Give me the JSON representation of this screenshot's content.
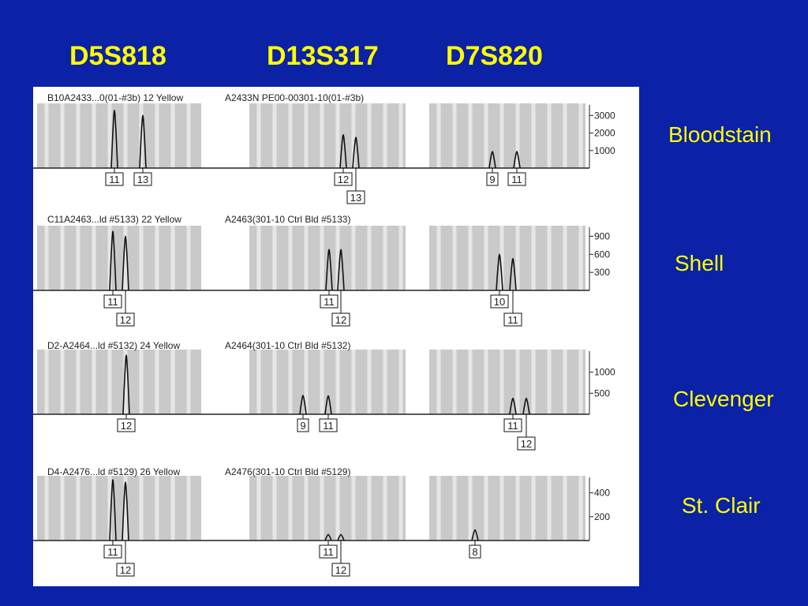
{
  "loci": [
    "D5S818",
    "D13S317",
    "D7S820"
  ],
  "samples": [
    "Bloodstain",
    "Shell",
    "Clevenger",
    "St. Clair"
  ],
  "chart_data": [
    {
      "type": "line",
      "title": "B10A2433...0(01-#3b)  12  Yellow",
      "subtitle": "A2433N  PE00-00301-10(01-#3b)",
      "sample": "Bloodstain",
      "yticks": [
        3000,
        2000,
        1000
      ],
      "ylim": [
        0,
        3600
      ],
      "peaks": [
        {
          "locus": "D5S818",
          "alleles": [
            {
              "label": "11",
              "height": 3300
            },
            {
              "label": "13",
              "height": 3000
            }
          ]
        },
        {
          "locus": "D13S317",
          "alleles": [
            {
              "label": "12",
              "height": 1900
            },
            {
              "label": "13",
              "height": 1750
            }
          ]
        },
        {
          "locus": "D7S820",
          "alleles": [
            {
              "label": "9",
              "height": 950
            },
            {
              "label": "11",
              "height": 950
            }
          ]
        }
      ]
    },
    {
      "type": "line",
      "title": "C11A2463...ld #5133)  22  Yellow",
      "subtitle": "A2463(301-10 Ctrl Bld #5133)",
      "sample": "Shell",
      "yticks": [
        900,
        600,
        300
      ],
      "ylim": [
        0,
        1050
      ],
      "peaks": [
        {
          "locus": "D5S818",
          "alleles": [
            {
              "label": "11",
              "height": 980
            },
            {
              "label": "12",
              "height": 900
            }
          ]
        },
        {
          "locus": "D13S317",
          "alleles": [
            {
              "label": "11",
              "height": 680
            },
            {
              "label": "12",
              "height": 680
            }
          ]
        },
        {
          "locus": "D7S820",
          "alleles": [
            {
              "label": "10",
              "height": 600
            },
            {
              "label": "11",
              "height": 530
            }
          ]
        }
      ]
    },
    {
      "type": "line",
      "title": "D2-A2464...ld #5132)  24  Yellow",
      "subtitle": "A2464(301-10 Ctrl Bld #5132)",
      "sample": "Clevenger",
      "yticks": [
        1000,
        500
      ],
      "ylim": [
        0,
        1500
      ],
      "peaks": [
        {
          "locus": "D5S818",
          "alleles": [
            {
              "label": "12",
              "height": 1400
            }
          ]
        },
        {
          "locus": "D13S317",
          "alleles": [
            {
              "label": "9",
              "height": 450
            },
            {
              "label": "11",
              "height": 440
            }
          ]
        },
        {
          "locus": "D7S820",
          "alleles": [
            {
              "label": "11",
              "height": 380
            },
            {
              "label": "12",
              "height": 380
            }
          ]
        }
      ]
    },
    {
      "type": "line",
      "title": "D4-A2476...ld #5129)  26  Yellow",
      "subtitle": "A2476(301-10 Ctrl Bld #5129)",
      "sample": "St. Clair",
      "yticks": [
        400,
        200
      ],
      "ylim": [
        0,
        530
      ],
      "peaks": [
        {
          "locus": "D5S818",
          "alleles": [
            {
              "label": "11",
              "height": 510
            },
            {
              "label": "12",
              "height": 490
            }
          ]
        },
        {
          "locus": "D13S317",
          "alleles": [
            {
              "label": "11",
              "height": 50
            },
            {
              "label": "12",
              "height": 50
            }
          ]
        },
        {
          "locus": "D7S820",
          "alleles": [
            {
              "label": "8",
              "height": 90
            }
          ]
        }
      ]
    }
  ]
}
